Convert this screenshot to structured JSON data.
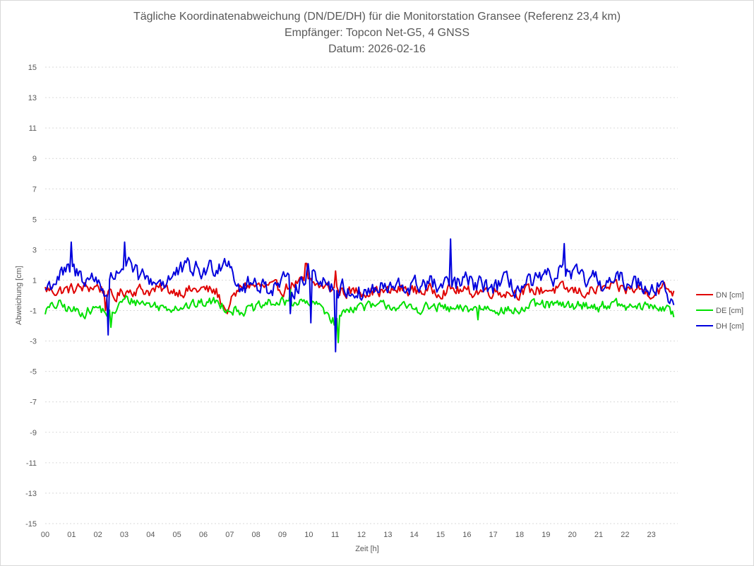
{
  "chart_data": {
    "type": "line",
    "title": [
      "Tägliche Koordinatenabweichung (DN/DE/DH) für die Monitorstation Gransee (Referenz 23,4 km)",
      "Empfänger: Topcon Net-G5, 4 GNSS",
      "Datum: 2026-02-16"
    ],
    "xlabel": "Zeit [h]",
    "ylabel": "Abweichung [cm]",
    "ylim": [
      -15,
      15
    ],
    "yticks": [
      15,
      13,
      11,
      9,
      7,
      5,
      3,
      1,
      -1,
      -3,
      -5,
      -7,
      -9,
      -11,
      -13,
      -15
    ],
    "xlim": [
      0,
      24
    ],
    "xticks": [
      "00",
      "01",
      "02",
      "03",
      "04",
      "05",
      "06",
      "07",
      "08",
      "09",
      "10",
      "11",
      "12",
      "13",
      "14",
      "15",
      "16",
      "17",
      "18",
      "19",
      "20",
      "21",
      "22",
      "23"
    ],
    "grid": "horizontal-dotted",
    "legend_position": "right",
    "series": [
      {
        "name": "DN [cm]",
        "color": "#e00000",
        "anchors": [
          [
            0,
            0.4
          ],
          [
            0.5,
            0.3
          ],
          [
            1,
            0.4
          ],
          [
            1.5,
            0.5
          ],
          [
            2,
            0.6
          ],
          [
            2.3,
            0.2
          ],
          [
            2.6,
            -0.2
          ],
          [
            3,
            0.3
          ],
          [
            3.5,
            0.4
          ],
          [
            4,
            0.3
          ],
          [
            4.5,
            0.4
          ],
          [
            5,
            0.3
          ],
          [
            5.5,
            0.3
          ],
          [
            6,
            0.4
          ],
          [
            6.5,
            0.2
          ],
          [
            6.8,
            -0.8
          ],
          [
            7,
            -0.6
          ],
          [
            7.5,
            0.7
          ],
          [
            8,
            0.6
          ],
          [
            8.5,
            0.5
          ],
          [
            9,
            0.4
          ],
          [
            9.5,
            0.8
          ],
          [
            10,
            0.8
          ],
          [
            10.5,
            0.6
          ],
          [
            11,
            0.4
          ],
          [
            11.5,
            0.2
          ],
          [
            12,
            0.3
          ],
          [
            12.5,
            0.3
          ],
          [
            13,
            0.2
          ],
          [
            13.5,
            0.4
          ],
          [
            14,
            0.3
          ],
          [
            14.5,
            0.3
          ],
          [
            15,
            0.3
          ],
          [
            15.5,
            0.4
          ],
          [
            16,
            0.2
          ],
          [
            16.5,
            0.3
          ],
          [
            17,
            0.3
          ],
          [
            17.5,
            0.2
          ],
          [
            18,
            0.2
          ],
          [
            18.5,
            0.3
          ],
          [
            19,
            0.4
          ],
          [
            19.5,
            0.4
          ],
          [
            20,
            0.3
          ],
          [
            20.5,
            0.2
          ],
          [
            21,
            0.4
          ],
          [
            21.5,
            0.5
          ],
          [
            22,
            0.4
          ],
          [
            22.5,
            0.4
          ],
          [
            23,
            0.2
          ],
          [
            23.5,
            0.5
          ],
          [
            23.8,
            0.3
          ]
        ],
        "noise": 0.35,
        "spikes": [
          [
            6.9,
            -1.2
          ],
          [
            9.9,
            2.1
          ],
          [
            2.3,
            -1.0
          ],
          [
            11.0,
            1.6
          ]
        ]
      },
      {
        "name": "DE [cm]",
        "color": "#00e000",
        "anchors": [
          [
            0,
            -1.0
          ],
          [
            0.5,
            -0.6
          ],
          [
            1,
            -1.0
          ],
          [
            1.5,
            -1.1
          ],
          [
            2,
            -0.8
          ],
          [
            2.5,
            -1.3
          ],
          [
            3,
            -0.3
          ],
          [
            3.5,
            -0.4
          ],
          [
            4,
            -0.6
          ],
          [
            4.5,
            -0.8
          ],
          [
            5,
            -0.7
          ],
          [
            5.5,
            -0.7
          ],
          [
            6,
            -0.5
          ],
          [
            6.5,
            -0.4
          ],
          [
            7,
            -0.9
          ],
          [
            7.5,
            -1.0
          ],
          [
            8,
            -0.9
          ],
          [
            8.5,
            -0.5
          ],
          [
            9,
            -0.5
          ],
          [
            9.5,
            -0.4
          ],
          [
            10,
            -0.6
          ],
          [
            10.5,
            -0.7
          ],
          [
            11,
            -1.8
          ],
          [
            11.5,
            -0.8
          ],
          [
            12,
            -0.7
          ],
          [
            12.5,
            -0.8
          ],
          [
            13,
            -0.6
          ],
          [
            13.5,
            -0.8
          ],
          [
            14,
            -0.9
          ],
          [
            14.5,
            -0.8
          ],
          [
            15,
            -0.8
          ],
          [
            15.5,
            -1.0
          ],
          [
            16,
            -0.9
          ],
          [
            16.5,
            -0.8
          ],
          [
            17,
            -0.8
          ],
          [
            17.5,
            -1.0
          ],
          [
            18,
            -1.0
          ],
          [
            18.5,
            -0.7
          ],
          [
            19,
            -0.6
          ],
          [
            19.5,
            -0.7
          ],
          [
            20,
            -0.7
          ],
          [
            20.5,
            -0.6
          ],
          [
            21,
            -0.8
          ],
          [
            21.5,
            -0.5
          ],
          [
            22,
            -0.8
          ],
          [
            22.5,
            -0.8
          ],
          [
            23,
            -0.7
          ],
          [
            23.5,
            -0.8
          ],
          [
            23.8,
            -1.3
          ]
        ],
        "noise": 0.3,
        "spikes": [
          [
            11.1,
            -3.1
          ],
          [
            2.5,
            -2.1
          ],
          [
            9.3,
            0.4
          ],
          [
            16.4,
            -1.6
          ]
        ]
      },
      {
        "name": "DH [cm]",
        "color": "#0000dd",
        "anchors": [
          [
            0,
            0.4
          ],
          [
            0.5,
            1.2
          ],
          [
            1,
            1.6
          ],
          [
            1.5,
            1.2
          ],
          [
            2,
            1.0
          ],
          [
            2.3,
            0.2
          ],
          [
            2.6,
            1.3
          ],
          [
            3,
            2.2
          ],
          [
            3.5,
            1.2
          ],
          [
            4,
            1.0
          ],
          [
            4.5,
            0.9
          ],
          [
            5,
            1.4
          ],
          [
            5.5,
            1.8
          ],
          [
            6,
            1.5
          ],
          [
            6.5,
            2.0
          ],
          [
            7,
            2.5
          ],
          [
            7.3,
            0.6
          ],
          [
            7.6,
            0.5
          ],
          [
            8,
            0.9
          ],
          [
            8.5,
            0.5
          ],
          [
            9,
            0.8
          ],
          [
            9.5,
            0.6
          ],
          [
            10,
            1.5
          ],
          [
            10.5,
            1.2
          ],
          [
            11,
            0.4
          ],
          [
            11.5,
            0.4
          ],
          [
            12,
            0.1
          ],
          [
            12.5,
            0.4
          ],
          [
            13,
            0.4
          ],
          [
            13.5,
            0.5
          ],
          [
            14,
            0.6
          ],
          [
            14.5,
            0.9
          ],
          [
            15,
            0.4
          ],
          [
            15.5,
            0.7
          ],
          [
            16,
            0.9
          ],
          [
            16.5,
            0.6
          ],
          [
            17,
            0.6
          ],
          [
            17.5,
            0.8
          ],
          [
            18,
            0.4
          ],
          [
            18.5,
            0.8
          ],
          [
            19,
            1.0
          ],
          [
            19.5,
            1.5
          ],
          [
            20,
            1.3
          ],
          [
            20.5,
            1.0
          ],
          [
            21,
            0.9
          ],
          [
            21.5,
            0.8
          ],
          [
            22,
            1.0
          ],
          [
            22.5,
            0.8
          ],
          [
            23,
            0.6
          ],
          [
            23.5,
            0.8
          ],
          [
            23.8,
            -0.8
          ]
        ],
        "noise": 0.55,
        "spikes": [
          [
            2.4,
            -2.6
          ],
          [
            11.0,
            -3.7
          ],
          [
            15.4,
            3.7
          ],
          [
            10.1,
            -1.8
          ],
          [
            3.0,
            3.5
          ],
          [
            1.0,
            3.5
          ],
          [
            19.7,
            3.4
          ],
          [
            9.3,
            -1.2
          ]
        ]
      }
    ]
  }
}
